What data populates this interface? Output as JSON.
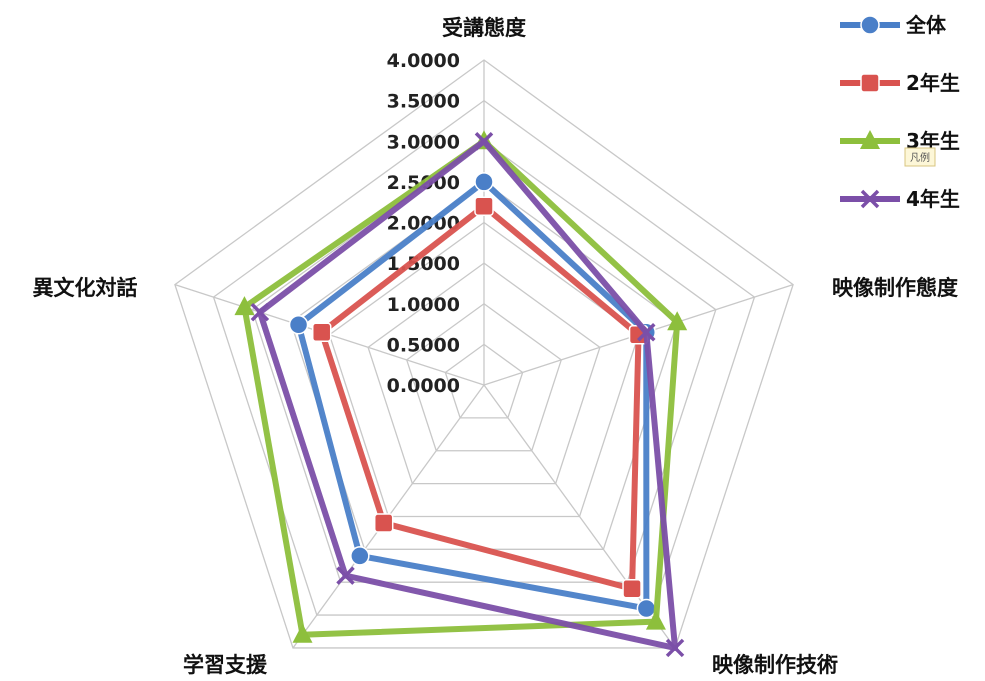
{
  "chart_data": {
    "type": "radar",
    "axes": [
      "受講態度",
      "映像制作態度",
      "映像制作技術",
      "学習支援",
      "異文化対話"
    ],
    "ticks": [
      "0.0000",
      "0.5000",
      "1.0000",
      "1.5000",
      "2.0000",
      "2.5000",
      "3.0000",
      "3.5000",
      "4.0000"
    ],
    "rlim": [
      0,
      4
    ],
    "grid": true,
    "legend_position": "top-right",
    "series": [
      {
        "name": "全体",
        "color": "#4a7fc8",
        "marker": "circle",
        "values": [
          2.5,
          2.1,
          3.4,
          2.6,
          2.4
        ]
      },
      {
        "name": "2年生",
        "color": "#d9534f",
        "marker": "square",
        "values": [
          2.2,
          2.0,
          3.1,
          2.1,
          2.1
        ]
      },
      {
        "name": "3年生",
        "color": "#8dbf3c",
        "marker": "triangle",
        "values": [
          3.0,
          2.5,
          3.6,
          3.8,
          3.1
        ]
      },
      {
        "name": "4年生",
        "color": "#7b4fa8",
        "marker": "cross",
        "values": [
          3.0,
          2.1,
          4.0,
          2.9,
          2.9
        ]
      }
    ],
    "annotation": "凡例"
  }
}
